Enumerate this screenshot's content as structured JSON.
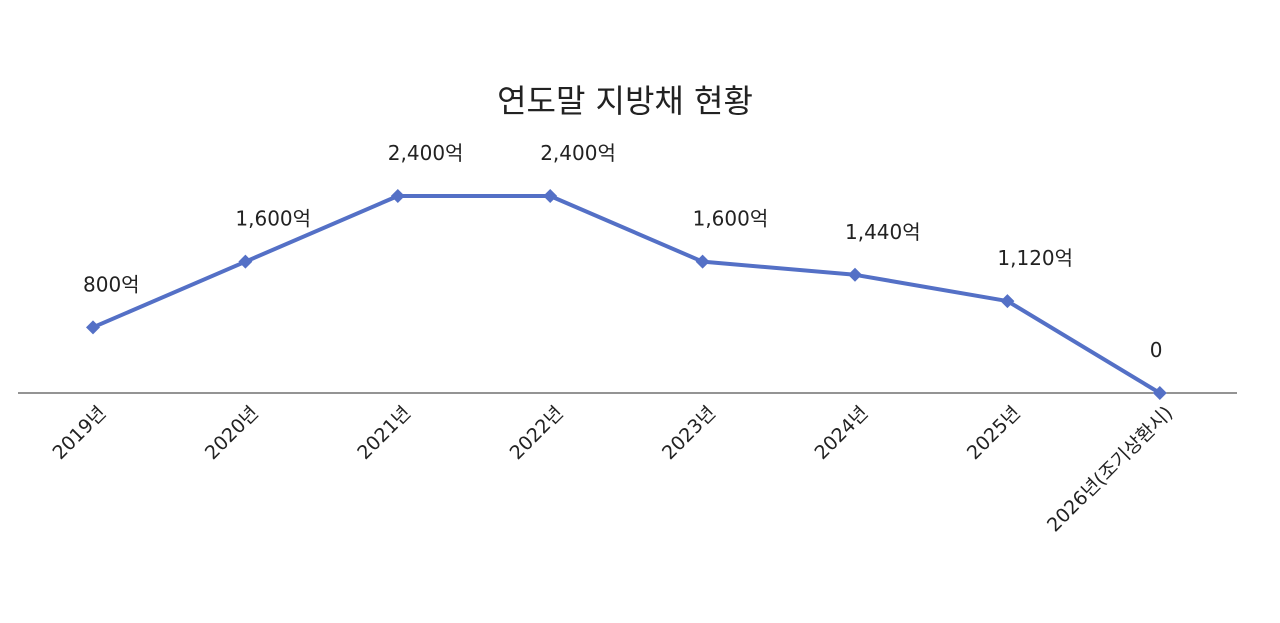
{
  "chart_data": {
    "type": "line",
    "title": "연도말 지방채 현황",
    "categories": [
      "2019년",
      "2020년",
      "2021년",
      "2022년",
      "2023년",
      "2024년",
      "2025년",
      "2026년(조기상환시)"
    ],
    "values": [
      800,
      1600,
      2400,
      2400,
      1600,
      1440,
      1120,
      0
    ],
    "data_labels": [
      "800억",
      "1,600억",
      "2,400억",
      "2,400억",
      "1,600억",
      "1,440억",
      "1,120억",
      "0"
    ],
    "unit": "억",
    "ylim": [
      0,
      2400
    ],
    "grid": false,
    "legend": "none",
    "marker": "diamond",
    "colors": {
      "line": "#5470c6",
      "axis": "#555555"
    }
  }
}
